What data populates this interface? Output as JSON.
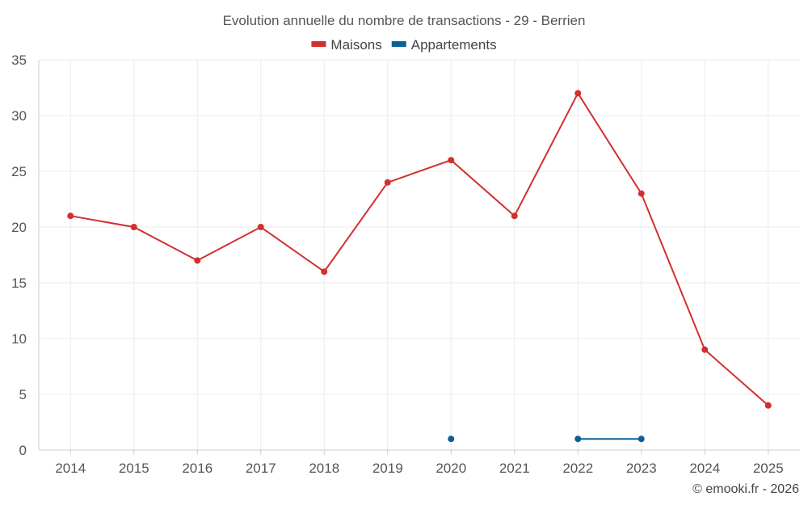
{
  "chart_data": {
    "type": "line",
    "title": "Evolution annuelle du nombre de transactions - 29 - Berrien",
    "categories": [
      "2014",
      "2015",
      "2016",
      "2017",
      "2018",
      "2019",
      "2020",
      "2021",
      "2022",
      "2023",
      "2024",
      "2025"
    ],
    "ylim": [
      0,
      35
    ],
    "yticks": [
      0,
      5,
      10,
      15,
      20,
      25,
      30,
      35
    ],
    "grid": true,
    "legend_position": "top-center",
    "series": [
      {
        "name": "Maisons",
        "color": "#d32f2f",
        "values": [
          21,
          20,
          17,
          20,
          16,
          24,
          26,
          21,
          32,
          23,
          9,
          4
        ]
      },
      {
        "name": "Appartements",
        "color": "#0d5f96",
        "values": [
          null,
          null,
          null,
          null,
          null,
          null,
          1,
          null,
          1,
          1,
          null,
          null
        ]
      }
    ]
  },
  "credit": "© emooki.fr - 2026"
}
